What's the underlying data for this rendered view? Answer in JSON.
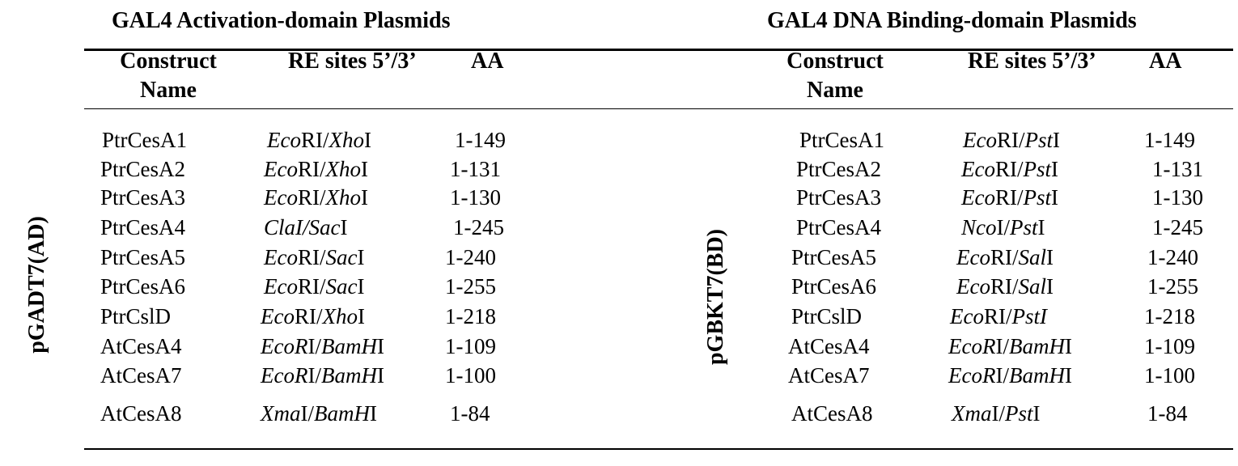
{
  "left": {
    "title": "GAL4 Activation-domain Plasmids",
    "side_label": "pGADT7(AD)",
    "headers": {
      "construct_line1": "Construct",
      "construct_line2": "Name",
      "re_sites": "RE sites 5’/3’",
      "aa": "AA"
    },
    "rows": [
      {
        "name": "PtrCesA1",
        "re_a": "Eco",
        "re_b": "RI/",
        "re_c": "Xho",
        "re_d": "I",
        "aa": "1-149"
      },
      {
        "name": "PtrCesA2",
        "re_a": "Eco",
        "re_b": "RI/",
        "re_c": "Xho",
        "re_d": "I",
        "aa": "1-131"
      },
      {
        "name": "PtrCesA3",
        "re_a": "Eco",
        "re_b": "RI/",
        "re_c": "Xho",
        "re_d": "I",
        "aa": "1-130"
      },
      {
        "name": "PtrCesA4",
        "re_a": "ClaI/",
        "re_b": "",
        "re_c": "Sac",
        "re_d": "I",
        "aa": "1-245"
      },
      {
        "name": "PtrCesA5",
        "re_a": "Eco",
        "re_b": "RI/",
        "re_c": "Sac",
        "re_d": "I",
        "aa": "1-240"
      },
      {
        "name": "PtrCesA6",
        "re_a": "Eco",
        "re_b": "RI/",
        "re_c": "Sac",
        "re_d": "I",
        "aa": "1-255"
      },
      {
        "name": "PtrCslD",
        "re_a": "Eco",
        "re_b": "RI/",
        "re_c": "Xho",
        "re_d": "I",
        "aa": "1-218"
      },
      {
        "name": "AtCesA4",
        "re_a": "EcoR",
        "re_b": "I/",
        "re_c": "BamH",
        "re_d": "I",
        "aa": "1-109"
      },
      {
        "name": "AtCesA7",
        "re_a": "EcoR",
        "re_b": "I/",
        "re_c": "BamH",
        "re_d": "I",
        "aa": "1-100"
      },
      {
        "name": "AtCesA8",
        "re_a": "Xma",
        "re_b": "I/",
        "re_c": "BamH",
        "re_d": "I",
        "aa": "1-84"
      }
    ]
  },
  "right": {
    "title": "GAL4 DNA Binding-domain Plasmids",
    "side_label": "pGBKT7(BD)",
    "headers": {
      "construct_line1": "Construct",
      "construct_line2": "Name",
      "re_sites": "RE sites 5’/3’",
      "aa": "AA"
    },
    "rows": [
      {
        "name": "PtrCesA1",
        "re_a": "Eco",
        "re_b": "RI/",
        "re_c": "Pst",
        "re_d": "I",
        "aa": "1-149"
      },
      {
        "name": "PtrCesA2",
        "re_a": "Eco",
        "re_b": "RI/",
        "re_c": "Pst",
        "re_d": "I",
        "aa": "1-131"
      },
      {
        "name": "PtrCesA3",
        "re_a": "Eco",
        "re_b": "RI/",
        "re_c": "Pst",
        "re_d": "I",
        "aa": "1-130"
      },
      {
        "name": "PtrCesA4",
        "re_a": "Nco",
        "re_b": "I/",
        "re_c": "Pst",
        "re_d": "I",
        "aa": "1-245"
      },
      {
        "name": "PtrCesA5",
        "re_a": "Eco",
        "re_b": "RI/",
        "re_c": "Sal",
        "re_d": "I",
        "aa": "1-240"
      },
      {
        "name": "PtrCesA6",
        "re_a": "Eco",
        "re_b": "RI/",
        "re_c": "Sal",
        "re_d": "I",
        "aa": "1-255"
      },
      {
        "name": "PtrCslD",
        "re_a": "Eco",
        "re_b": "RI/",
        "re_c": "PstI",
        "re_d": "",
        "aa": "1-218"
      },
      {
        "name": "AtCesA4",
        "re_a": "EcoR",
        "re_b": "I/",
        "re_c": "BamH",
        "re_d": "I",
        "aa": "1-109"
      },
      {
        "name": "AtCesA7",
        "re_a": "EcoR",
        "re_b": "I/",
        "re_c": "BamH",
        "re_d": "I",
        "aa": "1-100"
      },
      {
        "name": "AtCesA8",
        "re_a": "Xma",
        "re_b": "I/",
        "re_c": "Pst",
        "re_d": "I",
        "aa": "1-84"
      }
    ]
  }
}
